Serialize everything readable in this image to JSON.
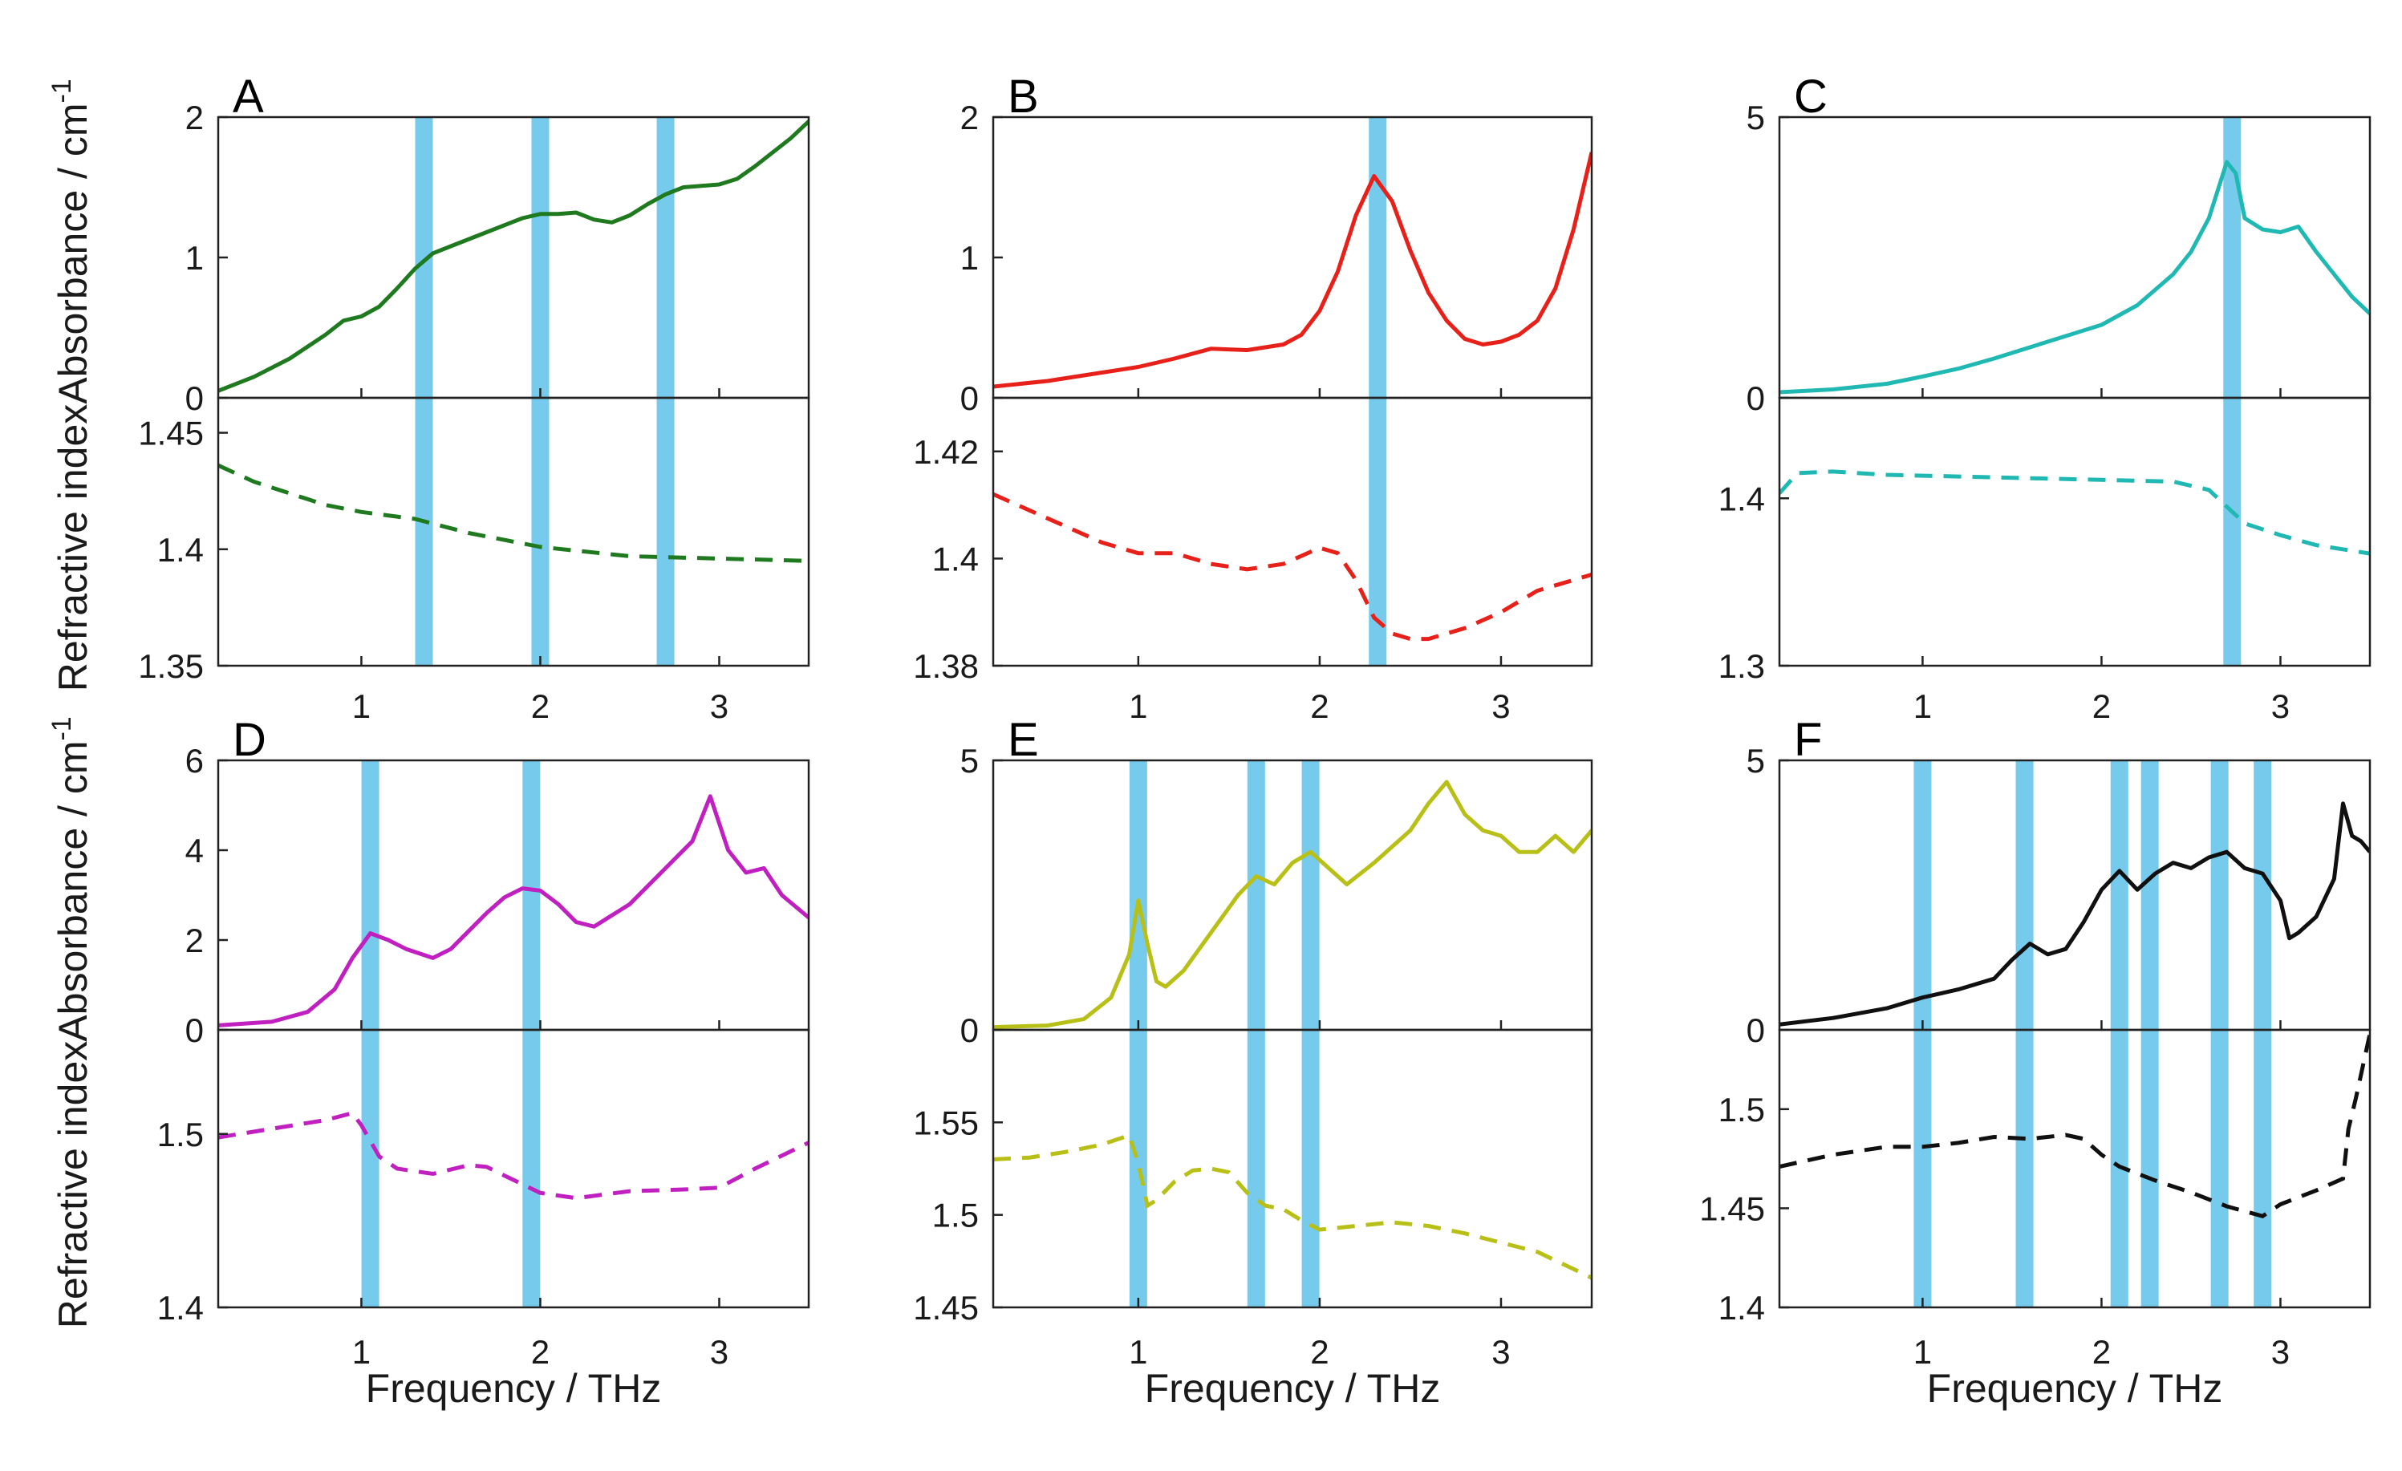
{
  "figure": {
    "band_color": "#6fc8ec",
    "ylabel_absorbance": "Absorbance / cm",
    "ylabel_refractive": "Refractive index",
    "ylabel_superscript": "-1",
    "xlabel": "Frequency / THz"
  },
  "chart_data": [
    {
      "type": "line",
      "panel": "A",
      "color": "#1f7a1f",
      "xlim": [
        0.2,
        3.5
      ],
      "xticks": [
        "1",
        "2",
        "3"
      ],
      "absorbance": {
        "ylim": [
          0,
          2
        ],
        "yticks": [
          "0",
          "1",
          "2"
        ],
        "x": [
          0.2,
          0.4,
          0.6,
          0.8,
          0.9,
          1.0,
          1.1,
          1.2,
          1.3,
          1.4,
          1.5,
          1.7,
          1.9,
          2.0,
          2.1,
          2.2,
          2.3,
          2.4,
          2.5,
          2.6,
          2.7,
          2.8,
          3.0,
          3.1,
          3.2,
          3.3,
          3.4,
          3.5
        ],
        "y": [
          0.05,
          0.15,
          0.28,
          0.45,
          0.55,
          0.58,
          0.65,
          0.78,
          0.92,
          1.03,
          1.08,
          1.18,
          1.28,
          1.31,
          1.31,
          1.32,
          1.27,
          1.25,
          1.3,
          1.38,
          1.45,
          1.5,
          1.52,
          1.56,
          1.65,
          1.75,
          1.85,
          1.97
        ]
      },
      "refractive": {
        "ylim": [
          1.35,
          1.465
        ],
        "yticks": [
          "1.35",
          "1.4",
          "1.45"
        ],
        "x": [
          0.2,
          0.4,
          0.6,
          0.8,
          1.0,
          1.3,
          1.6,
          2.0,
          2.5,
          3.0,
          3.5
        ],
        "y": [
          1.436,
          1.429,
          1.424,
          1.419,
          1.416,
          1.413,
          1.407,
          1.401,
          1.397,
          1.396,
          1.395
        ]
      },
      "bands": [
        1.35,
        2.0,
        2.7
      ]
    },
    {
      "type": "line",
      "panel": "B",
      "color": "#e8201a",
      "xlim": [
        0.2,
        3.5
      ],
      "xticks": [
        "1",
        "2",
        "3"
      ],
      "absorbance": {
        "ylim": [
          0,
          2
        ],
        "yticks": [
          "0",
          "1",
          "2"
        ],
        "x": [
          0.2,
          0.5,
          0.8,
          1.0,
          1.2,
          1.4,
          1.6,
          1.8,
          1.9,
          2.0,
          2.1,
          2.2,
          2.3,
          2.4,
          2.5,
          2.6,
          2.7,
          2.8,
          2.9,
          3.0,
          3.1,
          3.2,
          3.3,
          3.4,
          3.5
        ],
        "y": [
          0.08,
          0.12,
          0.18,
          0.22,
          0.28,
          0.35,
          0.34,
          0.38,
          0.45,
          0.62,
          0.9,
          1.3,
          1.58,
          1.4,
          1.05,
          0.75,
          0.55,
          0.42,
          0.38,
          0.4,
          0.45,
          0.55,
          0.78,
          1.2,
          1.75
        ]
      },
      "refractive": {
        "ylim": [
          1.38,
          1.43
        ],
        "yticks": [
          "1.38",
          "1.4",
          "1.42"
        ],
        "x": [
          0.2,
          0.4,
          0.6,
          0.8,
          1.0,
          1.2,
          1.4,
          1.6,
          1.8,
          2.0,
          2.1,
          2.2,
          2.3,
          2.4,
          2.5,
          2.6,
          2.8,
          3.0,
          3.2,
          3.5
        ],
        "y": [
          1.412,
          1.409,
          1.406,
          1.403,
          1.401,
          1.401,
          1.399,
          1.398,
          1.399,
          1.402,
          1.401,
          1.396,
          1.389,
          1.386,
          1.385,
          1.385,
          1.387,
          1.39,
          1.394,
          1.397
        ]
      },
      "bands": [
        2.32
      ]
    },
    {
      "type": "line",
      "panel": "C",
      "color": "#20b8b2",
      "xlim": [
        0.2,
        3.5
      ],
      "xticks": [
        "1",
        "2",
        "3"
      ],
      "absorbance": {
        "ylim": [
          0,
          5
        ],
        "yticks": [
          "0",
          "5"
        ],
        "x": [
          0.2,
          0.5,
          0.8,
          1.0,
          1.2,
          1.4,
          1.6,
          1.8,
          2.0,
          2.2,
          2.4,
          2.5,
          2.6,
          2.7,
          2.75,
          2.8,
          2.9,
          3.0,
          3.1,
          3.2,
          3.3,
          3.4,
          3.5
        ],
        "y": [
          0.1,
          0.15,
          0.25,
          0.38,
          0.52,
          0.7,
          0.9,
          1.1,
          1.3,
          1.65,
          2.2,
          2.6,
          3.2,
          4.2,
          4.0,
          3.2,
          3.0,
          2.95,
          3.05,
          2.6,
          2.2,
          1.8,
          1.5
        ]
      },
      "refractive": {
        "ylim": [
          1.3,
          1.46
        ],
        "yticks": [
          "1.3",
          "1.4"
        ],
        "x": [
          0.2,
          0.3,
          0.5,
          0.8,
          1.2,
          1.6,
          2.0,
          2.4,
          2.6,
          2.7,
          2.8,
          3.0,
          3.2,
          3.5
        ],
        "y": [
          1.403,
          1.415,
          1.416,
          1.414,
          1.413,
          1.412,
          1.411,
          1.41,
          1.405,
          1.395,
          1.385,
          1.378,
          1.372,
          1.367
        ]
      },
      "bands": [
        2.73
      ]
    },
    {
      "type": "line",
      "panel": "D",
      "color": "#c020c0",
      "xlim": [
        0.2,
        3.5
      ],
      "xticks": [
        "1",
        "2",
        "3"
      ],
      "absorbance": {
        "ylim": [
          0,
          6
        ],
        "yticks": [
          "0",
          "2",
          "4",
          "6"
        ],
        "x": [
          0.2,
          0.5,
          0.7,
          0.85,
          0.95,
          1.05,
          1.15,
          1.25,
          1.4,
          1.5,
          1.6,
          1.7,
          1.8,
          1.9,
          2.0,
          2.1,
          2.2,
          2.3,
          2.5,
          2.7,
          2.85,
          2.95,
          3.05,
          3.15,
          3.25,
          3.35,
          3.5
        ],
        "y": [
          0.1,
          0.18,
          0.4,
          0.9,
          1.6,
          2.15,
          2.0,
          1.8,
          1.6,
          1.8,
          2.2,
          2.6,
          2.95,
          3.15,
          3.1,
          2.8,
          2.4,
          2.3,
          2.8,
          3.6,
          4.2,
          5.2,
          4.0,
          3.5,
          3.6,
          3.0,
          2.5
        ]
      },
      "refractive": {
        "ylim": [
          1.4,
          1.56
        ],
        "yticks": [
          "1.4",
          "1.5"
        ],
        "x": [
          0.2,
          0.5,
          0.8,
          0.95,
          1.0,
          1.1,
          1.2,
          1.4,
          1.6,
          1.7,
          1.8,
          1.9,
          2.0,
          2.2,
          2.5,
          2.8,
          3.0,
          3.2,
          3.5
        ],
        "y": [
          1.498,
          1.503,
          1.508,
          1.512,
          1.505,
          1.487,
          1.48,
          1.477,
          1.482,
          1.481,
          1.476,
          1.471,
          1.466,
          1.463,
          1.467,
          1.468,
          1.469,
          1.48,
          1.495
        ]
      },
      "bands": [
        1.05,
        1.95
      ]
    },
    {
      "type": "line",
      "panel": "E",
      "color": "#b8c018",
      "xlim": [
        0.2,
        3.5
      ],
      "xticks": [
        "1",
        "2",
        "3"
      ],
      "absorbance": {
        "ylim": [
          0,
          5
        ],
        "yticks": [
          "0",
          "5"
        ],
        "x": [
          0.2,
          0.5,
          0.7,
          0.85,
          0.95,
          1.0,
          1.05,
          1.1,
          1.15,
          1.25,
          1.4,
          1.55,
          1.65,
          1.75,
          1.85,
          1.95,
          2.05,
          2.15,
          2.3,
          2.5,
          2.6,
          2.7,
          2.8,
          2.9,
          3.0,
          3.1,
          3.2,
          3.3,
          3.4,
          3.5
        ],
        "y": [
          0.05,
          0.08,
          0.2,
          0.6,
          1.4,
          2.4,
          1.6,
          0.9,
          0.8,
          1.1,
          1.8,
          2.5,
          2.85,
          2.7,
          3.1,
          3.3,
          3.0,
          2.7,
          3.1,
          3.7,
          4.2,
          4.6,
          4.0,
          3.7,
          3.6,
          3.3,
          3.3,
          3.6,
          3.3,
          3.7
        ]
      },
      "refractive": {
        "ylim": [
          1.45,
          1.6
        ],
        "yticks": [
          "1.45",
          "1.5",
          "1.55"
        ],
        "x": [
          0.2,
          0.4,
          0.6,
          0.8,
          0.95,
          1.0,
          1.05,
          1.1,
          1.2,
          1.3,
          1.4,
          1.5,
          1.6,
          1.7,
          1.8,
          1.9,
          2.0,
          2.2,
          2.4,
          2.6,
          2.8,
          3.0,
          3.2,
          3.35,
          3.5
        ],
        "y": [
          1.53,
          1.531,
          1.534,
          1.538,
          1.543,
          1.528,
          1.505,
          1.508,
          1.518,
          1.524,
          1.525,
          1.523,
          1.512,
          1.505,
          1.503,
          1.497,
          1.492,
          1.494,
          1.496,
          1.494,
          1.49,
          1.485,
          1.48,
          1.473,
          1.466
        ]
      },
      "bands": [
        1.0,
        1.65,
        1.95
      ]
    },
    {
      "type": "line",
      "panel": "F",
      "color": "#101010",
      "xlim": [
        0.2,
        3.5
      ],
      "xticks": [
        "1",
        "2",
        "3"
      ],
      "absorbance": {
        "ylim": [
          0,
          5
        ],
        "yticks": [
          "0",
          "5"
        ],
        "x": [
          0.2,
          0.5,
          0.8,
          1.0,
          1.2,
          1.4,
          1.5,
          1.6,
          1.7,
          1.8,
          1.9,
          2.0,
          2.1,
          2.2,
          2.3,
          2.4,
          2.5,
          2.6,
          2.7,
          2.8,
          2.9,
          3.0,
          3.05,
          3.1,
          3.2,
          3.3,
          3.35,
          3.4,
          3.45,
          3.5
        ],
        "y": [
          0.1,
          0.22,
          0.4,
          0.6,
          0.75,
          0.95,
          1.3,
          1.6,
          1.4,
          1.5,
          2.0,
          2.6,
          2.95,
          2.6,
          2.9,
          3.1,
          3.0,
          3.2,
          3.3,
          3.0,
          2.9,
          2.4,
          1.7,
          1.8,
          2.1,
          2.8,
          4.2,
          3.6,
          3.5,
          3.3
        ]
      },
      "refractive": {
        "ylim": [
          1.4,
          1.54
        ],
        "yticks": [
          "1.4",
          "1.45",
          "1.5"
        ],
        "x": [
          0.2,
          0.5,
          0.8,
          1.0,
          1.2,
          1.4,
          1.6,
          1.8,
          1.9,
          2.0,
          2.1,
          2.3,
          2.5,
          2.7,
          2.9,
          3.0,
          3.2,
          3.35,
          3.38,
          3.42,
          3.5
        ],
        "y": [
          1.471,
          1.477,
          1.481,
          1.481,
          1.483,
          1.486,
          1.485,
          1.487,
          1.485,
          1.477,
          1.471,
          1.464,
          1.458,
          1.451,
          1.446,
          1.452,
          1.459,
          1.465,
          1.49,
          1.505,
          1.538
        ]
      },
      "bands": [
        1.0,
        1.57,
        2.1,
        2.27,
        2.66,
        2.9
      ]
    }
  ]
}
